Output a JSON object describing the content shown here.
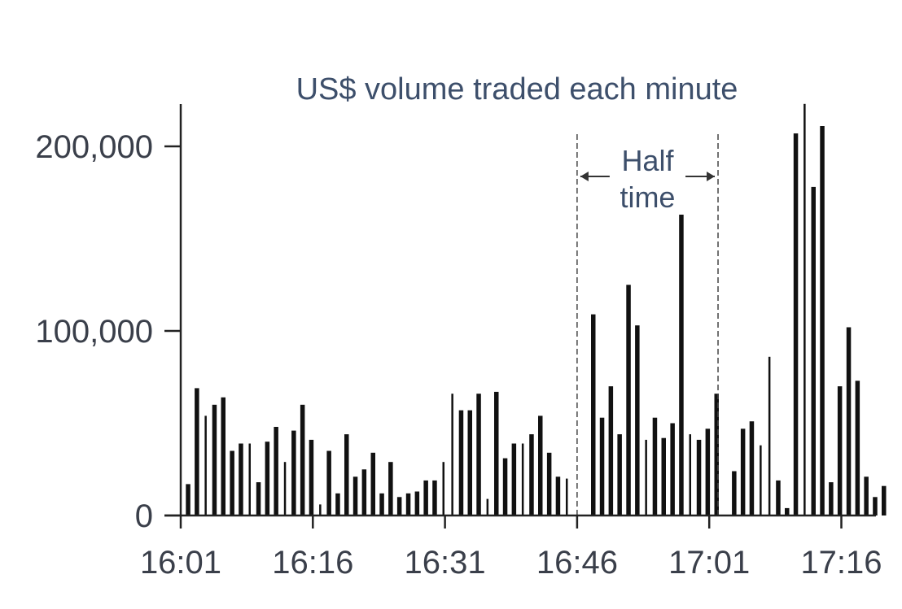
{
  "chart_data": {
    "type": "bar",
    "title": "US$ volume traded each minute",
    "xlabel": "",
    "ylabel": "",
    "ylim": [
      0,
      220000
    ],
    "grid": false,
    "x_tick_labels": [
      "16:01",
      "16:16",
      "16:31",
      "16:46",
      "17:01",
      "17:16"
    ],
    "x_tick_minutes": [
      0,
      15,
      30,
      45,
      60,
      75
    ],
    "y_tick_labels": [
      "0",
      "100,000",
      "200,000"
    ],
    "y_tick_values": [
      0,
      100000,
      200000
    ],
    "half_time": {
      "label_line1": "Half",
      "label_line2": "time",
      "start_minute": 45,
      "end_minute": 61
    },
    "bars": [
      {
        "minute": 0,
        "value": 17000,
        "thin": false
      },
      {
        "minute": 1,
        "value": 69000,
        "thin": false
      },
      {
        "minute": 2,
        "value": 54000,
        "thin": true
      },
      {
        "minute": 3,
        "value": 60000,
        "thin": false
      },
      {
        "minute": 4,
        "value": 64000,
        "thin": false
      },
      {
        "minute": 5,
        "value": 35000,
        "thin": false
      },
      {
        "minute": 6,
        "value": 39000,
        "thin": false
      },
      {
        "minute": 7,
        "value": 39000,
        "thin": true
      },
      {
        "minute": 8,
        "value": 18000,
        "thin": false
      },
      {
        "minute": 9,
        "value": 40000,
        "thin": false
      },
      {
        "minute": 10,
        "value": 48000,
        "thin": false
      },
      {
        "minute": 11,
        "value": 29000,
        "thin": true
      },
      {
        "minute": 12,
        "value": 46000,
        "thin": false
      },
      {
        "minute": 13,
        "value": 60000,
        "thin": false
      },
      {
        "minute": 14,
        "value": 41000,
        "thin": false
      },
      {
        "minute": 15,
        "value": 6000,
        "thin": true
      },
      {
        "minute": 16,
        "value": 35000,
        "thin": false
      },
      {
        "minute": 17,
        "value": 12000,
        "thin": false
      },
      {
        "minute": 18,
        "value": 44000,
        "thin": false
      },
      {
        "minute": 19,
        "value": 21000,
        "thin": false
      },
      {
        "minute": 20,
        "value": 25000,
        "thin": false
      },
      {
        "minute": 21,
        "value": 34000,
        "thin": false
      },
      {
        "minute": 22,
        "value": 12000,
        "thin": false
      },
      {
        "minute": 23,
        "value": 29000,
        "thin": false
      },
      {
        "minute": 24,
        "value": 10000,
        "thin": false
      },
      {
        "minute": 25,
        "value": 12000,
        "thin": false
      },
      {
        "minute": 26,
        "value": 13000,
        "thin": false
      },
      {
        "minute": 27,
        "value": 19000,
        "thin": false
      },
      {
        "minute": 28,
        "value": 19000,
        "thin": false
      },
      {
        "minute": 29,
        "value": 29000,
        "thin": true
      },
      {
        "minute": 30,
        "value": 66000,
        "thin": true
      },
      {
        "minute": 31,
        "value": 57000,
        "thin": false
      },
      {
        "minute": 32,
        "value": 57000,
        "thin": false
      },
      {
        "minute": 33,
        "value": 66000,
        "thin": false
      },
      {
        "minute": 34,
        "value": 9000,
        "thin": true
      },
      {
        "minute": 35,
        "value": 67000,
        "thin": false
      },
      {
        "minute": 36,
        "value": 31000,
        "thin": false
      },
      {
        "minute": 37,
        "value": 39000,
        "thin": false
      },
      {
        "minute": 38,
        "value": 39000,
        "thin": true
      },
      {
        "minute": 39,
        "value": 44000,
        "thin": false
      },
      {
        "minute": 40,
        "value": 54000,
        "thin": false
      },
      {
        "minute": 41,
        "value": 34000,
        "thin": false
      },
      {
        "minute": 42,
        "value": 21000,
        "thin": false
      },
      {
        "minute": 43,
        "value": 20000,
        "thin": true
      },
      {
        "minute": 44,
        "value": 0,
        "thin": true
      },
      {
        "minute": 45,
        "value": 0,
        "thin": true
      },
      {
        "minute": 46,
        "value": 109000,
        "thin": false
      },
      {
        "minute": 47,
        "value": 53000,
        "thin": false
      },
      {
        "minute": 48,
        "value": 70000,
        "thin": false
      },
      {
        "minute": 49,
        "value": 44000,
        "thin": false
      },
      {
        "minute": 50,
        "value": 125000,
        "thin": false
      },
      {
        "minute": 51,
        "value": 103000,
        "thin": false
      },
      {
        "minute": 52,
        "value": 41000,
        "thin": true
      },
      {
        "minute": 53,
        "value": 53000,
        "thin": false
      },
      {
        "minute": 54,
        "value": 42000,
        "thin": false
      },
      {
        "minute": 55,
        "value": 50000,
        "thin": false
      },
      {
        "minute": 56,
        "value": 163000,
        "thin": false
      },
      {
        "minute": 57,
        "value": 44000,
        "thin": true
      },
      {
        "minute": 58,
        "value": 41000,
        "thin": false
      },
      {
        "minute": 59,
        "value": 47000,
        "thin": false
      },
      {
        "minute": 60,
        "value": 66000,
        "thin": false
      },
      {
        "minute": 61,
        "value": 0,
        "thin": true
      },
      {
        "minute": 62,
        "value": 24000,
        "thin": false
      },
      {
        "minute": 63,
        "value": 47000,
        "thin": false
      },
      {
        "minute": 64,
        "value": 51000,
        "thin": false
      },
      {
        "minute": 65,
        "value": 38000,
        "thin": true
      },
      {
        "minute": 66,
        "value": 86000,
        "thin": true
      },
      {
        "minute": 67,
        "value": 19000,
        "thin": false
      },
      {
        "minute": 68,
        "value": 4000,
        "thin": false
      },
      {
        "minute": 69,
        "value": 207000,
        "thin": false
      },
      {
        "minute": 70,
        "value": 223000,
        "thin": true
      },
      {
        "minute": 71,
        "value": 178000,
        "thin": false
      },
      {
        "minute": 72,
        "value": 211000,
        "thin": false
      },
      {
        "minute": 73,
        "value": 18000,
        "thin": false
      },
      {
        "minute": 74,
        "value": 70000,
        "thin": false
      },
      {
        "minute": 75,
        "value": 102000,
        "thin": false
      },
      {
        "minute": 76,
        "value": 73000,
        "thin": false
      },
      {
        "minute": 77,
        "value": 21000,
        "thin": false
      },
      {
        "minute": 78,
        "value": 10000,
        "thin": false
      },
      {
        "minute": 79,
        "value": 16000,
        "thin": false
      }
    ]
  }
}
